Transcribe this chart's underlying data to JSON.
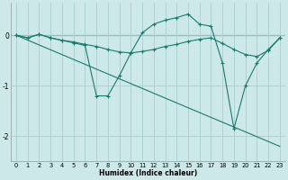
{
  "xlabel": "Humidex (Indice chaleur)",
  "background_color": "#cce8e8",
  "grid_color": "#aacfcf",
  "line_color": "#1a7a6e",
  "xlim": [
    -0.5,
    23.5
  ],
  "ylim": [
    -2.5,
    0.65
  ],
  "yticks": [
    0,
    -1,
    -2
  ],
  "xticks": [
    0,
    1,
    2,
    3,
    4,
    5,
    6,
    7,
    8,
    9,
    10,
    11,
    12,
    13,
    14,
    15,
    16,
    17,
    18,
    19,
    20,
    21,
    22,
    23
  ],
  "line1_x": [
    0,
    1,
    2,
    3,
    4,
    5,
    6,
    7,
    8,
    9,
    10,
    11,
    12,
    13,
    14,
    15,
    16,
    17,
    18,
    19,
    20,
    21,
    22,
    23
  ],
  "line1_y": [
    0.0,
    -0.05,
    0.02,
    -0.05,
    -0.1,
    -0.15,
    -0.2,
    -1.2,
    -1.2,
    -0.8,
    -0.35,
    0.05,
    0.22,
    0.3,
    0.35,
    0.42,
    0.22,
    0.18,
    -0.55,
    -1.85,
    -1.0,
    -0.55,
    -0.28,
    -0.05
  ],
  "line2_x": [
    0,
    1,
    2,
    3,
    4,
    5,
    6,
    7,
    8,
    9,
    10,
    11,
    12,
    13,
    14,
    15,
    16,
    17,
    18,
    19,
    20,
    21,
    22,
    23
  ],
  "line2_y": [
    0.0,
    -0.05,
    0.02,
    -0.05,
    -0.1,
    -0.13,
    -0.18,
    -0.22,
    -0.28,
    -0.33,
    -0.35,
    -0.32,
    -0.28,
    -0.22,
    -0.18,
    -0.12,
    -0.08,
    -0.05,
    -0.16,
    -0.28,
    -0.38,
    -0.42,
    -0.3,
    -0.05
  ],
  "line3_x": [
    0,
    23
  ],
  "line3_y": [
    0.0,
    -2.2
  ]
}
